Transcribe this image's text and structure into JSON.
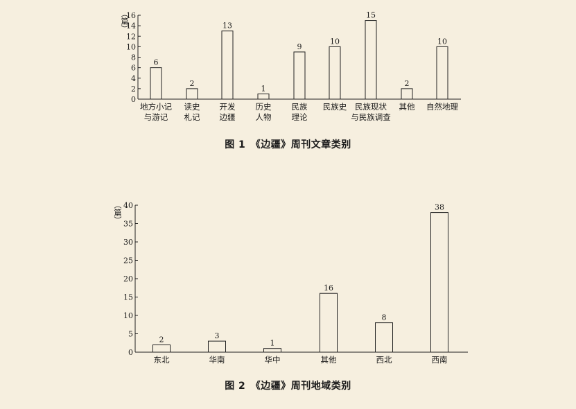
{
  "chart_data": [
    {
      "type": "bar",
      "title": "图 1　《边疆》周刊文章类别",
      "ylabel": "（篇）",
      "ylim": [
        0,
        16
      ],
      "yticks": [
        0,
        2,
        4,
        6,
        8,
        10,
        12,
        14,
        16
      ],
      "categories": [
        "地方小记\n与游记",
        "读史\n札记",
        "开发\n边疆",
        "历史\n人物",
        "民族\n理论",
        "民族史",
        "民族现状\n与民族调查",
        "其他",
        "自然地理"
      ],
      "values": [
        6,
        2,
        13,
        1,
        9,
        10,
        15,
        2,
        10
      ],
      "grid": false
    },
    {
      "type": "bar",
      "title": "图 2　《边疆》周刊地域类别",
      "ylabel": "（篇）",
      "ylim": [
        0,
        40
      ],
      "yticks": [
        0,
        5,
        10,
        15,
        20,
        25,
        30,
        35,
        40
      ],
      "categories": [
        "东北",
        "华南",
        "华中",
        "其他",
        "西北",
        "西南"
      ],
      "values": [
        2,
        3,
        1,
        16,
        8,
        38
      ],
      "grid": false
    }
  ]
}
